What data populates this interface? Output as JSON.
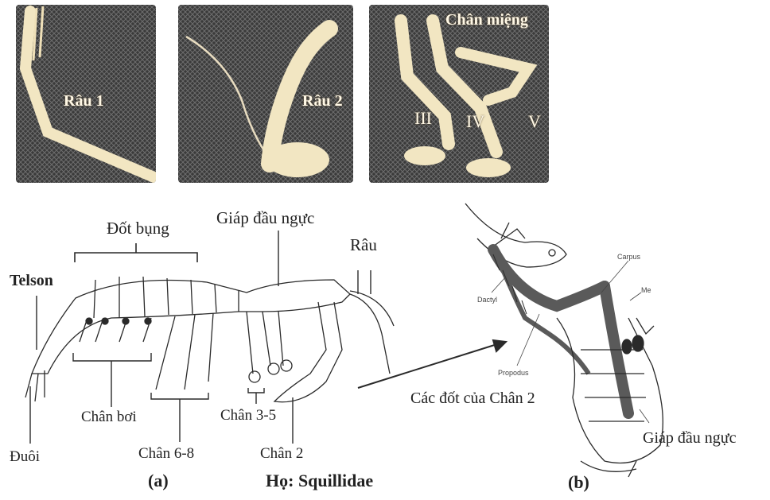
{
  "photos": {
    "antenna1": "Râu 1",
    "antenna2": "Râu 2",
    "mouthparts_title": "Chân miệng",
    "mp3": "III",
    "mp4": "IV",
    "mp5": "V"
  },
  "diagram_a": {
    "abdomen": "Đốt bụng",
    "carapace": "Giáp đầu ngực",
    "antenna": "Râu",
    "telson": "Telson",
    "tail": "Đuôi",
    "swimmerets": "Chân bơi",
    "legs68": "Chân 6-8",
    "legs35": "Chân 3-5",
    "leg2": "Chân 2",
    "panel": "(a)",
    "family": "Họ: Squillidae"
  },
  "diagram_b": {
    "carpus": "Carpus",
    "me": "Me",
    "dactyl": "Dactyl",
    "propodus": "Propodus",
    "segments": "Các đốt của Chân 2",
    "carapace": "Giáp đầu ngực",
    "panel": "(b)"
  },
  "colors": {
    "photo_bg": "#3a3a3a",
    "specimen": "#f2e6c2",
    "line": "#2a2a2a",
    "dark_segment": "#5a5a5a"
  }
}
